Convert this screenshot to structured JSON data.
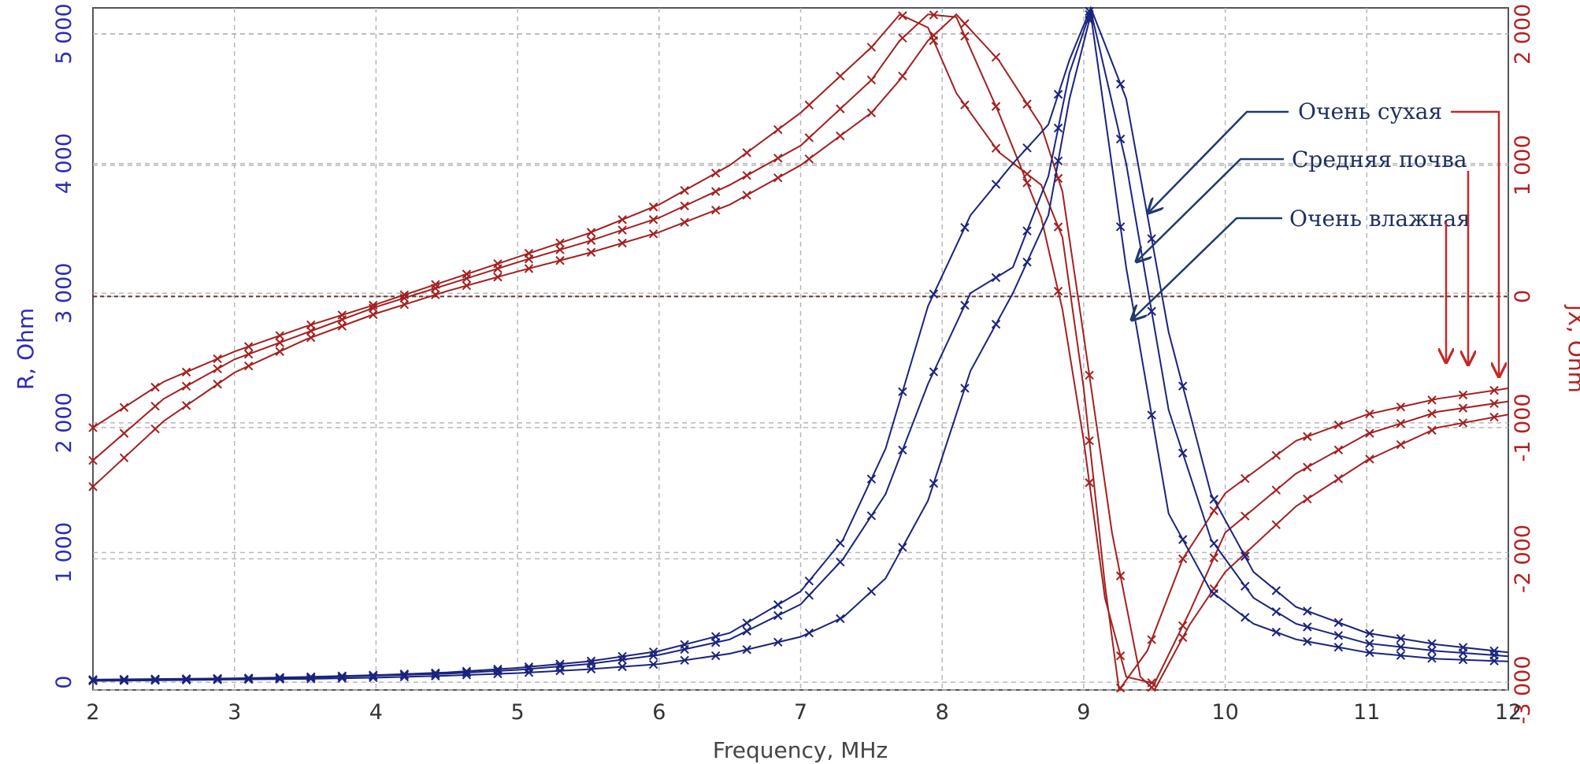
{
  "chart_data": {
    "type": "line",
    "xlabel": "Frequency, MHz",
    "ylabel_left": "R, Ohm",
    "ylabel_right": "jX, Ohm",
    "xlim": [
      2,
      12
    ],
    "ylim_left": [
      -60,
      5200
    ],
    "ylim_right": [
      -3000,
      2200
    ],
    "x_ticks": [
      "2",
      "3",
      "4",
      "5",
      "6",
      "7",
      "8",
      "9",
      "10",
      "11",
      "12"
    ],
    "y_left_ticks": [
      "0",
      "1 000",
      "2 000",
      "3 000",
      "4 000",
      "5 000"
    ],
    "y_right_ticks": [
      "2 000",
      "1 000",
      "0",
      "-1 000",
      "-2 000",
      "-3 000"
    ],
    "grid": true,
    "colors": {
      "R": "#1a237e",
      "X": "#a32020",
      "left_axis": "#2b2bb8",
      "right_axis": "#b52020",
      "annotation": "#1f2f5f"
    },
    "series_R": [
      {
        "x": [
          2.0,
          2.5,
          3.0,
          3.5,
          4.0,
          4.5,
          5.0,
          5.5,
          6.0,
          6.5,
          7.0,
          7.3,
          7.6,
          7.9,
          8.2,
          8.5,
          8.75,
          8.9,
          9.05,
          9.3,
          9.6,
          9.9,
          10.2,
          10.5,
          11.0,
          11.5,
          12.0
        ],
        "y": [
          20,
          25,
          30,
          40,
          55,
          75,
          110,
          160,
          240,
          380,
          700,
          1100,
          1800,
          2900,
          3600,
          4000,
          4300,
          4800,
          5200,
          4500,
          2700,
          1450,
          850,
          580,
          380,
          290,
          230
        ]
      },
      {
        "x": [
          2.0,
          2.5,
          3.0,
          3.5,
          4.0,
          4.5,
          5.0,
          5.5,
          6.0,
          6.5,
          7.0,
          7.3,
          7.6,
          7.9,
          8.2,
          8.5,
          8.75,
          8.9,
          9.05,
          9.3,
          9.6,
          9.9,
          10.2,
          10.5,
          11.0,
          11.5,
          12.0
        ],
        "y": [
          15,
          20,
          25,
          35,
          50,
          65,
          95,
          140,
          210,
          330,
          600,
          950,
          1450,
          2300,
          3000,
          3200,
          3900,
          4700,
          5180,
          4000,
          2100,
          1100,
          650,
          450,
          300,
          240,
          200
        ]
      },
      {
        "x": [
          2.0,
          2.5,
          3.0,
          3.5,
          4.0,
          4.5,
          5.0,
          5.5,
          6.0,
          6.5,
          7.0,
          7.3,
          7.6,
          7.9,
          8.2,
          8.5,
          8.75,
          8.9,
          9.05,
          9.3,
          9.6,
          9.9,
          10.2,
          10.5,
          11.0,
          11.5,
          12.0
        ],
        "y": [
          10,
          15,
          20,
          25,
          35,
          50,
          70,
          100,
          140,
          220,
          350,
          500,
          800,
          1400,
          2400,
          3000,
          3600,
          4500,
          5150,
          3200,
          1300,
          700,
          450,
          330,
          230,
          180,
          160
        ]
      }
    ],
    "series_X": [
      {
        "x": [
          2.0,
          2.5,
          3.0,
          3.5,
          4.0,
          4.5,
          5.0,
          5.5,
          6.0,
          6.5,
          7.0,
          7.5,
          7.7,
          7.9,
          8.1,
          8.4,
          8.7,
          8.85,
          9.0,
          9.15,
          9.25,
          9.45,
          9.7,
          10.0,
          10.5,
          11.0,
          11.5,
          12.0
        ],
        "y": [
          -1000,
          -650,
          -420,
          -230,
          -60,
          120,
          300,
          480,
          700,
          1000,
          1400,
          1900,
          2150,
          2050,
          1550,
          1100,
          850,
          450,
          -700,
          -2200,
          -3000,
          -2700,
          -2000,
          -1500,
          -1100,
          -900,
          -780,
          -700
        ]
      },
      {
        "x": [
          2.0,
          2.5,
          3.0,
          3.5,
          4.0,
          4.5,
          5.0,
          5.5,
          6.0,
          6.5,
          7.0,
          7.5,
          7.7,
          7.9,
          8.1,
          8.4,
          8.7,
          8.85,
          9.0,
          9.15,
          9.3,
          9.5,
          9.75,
          10.0,
          10.5,
          11.0,
          11.5,
          12.0
        ],
        "y": [
          -1250,
          -780,
          -480,
          -280,
          -80,
          90,
          260,
          420,
          600,
          850,
          1150,
          1650,
          1950,
          2150,
          2130,
          1400,
          600,
          -100,
          -1100,
          -2300,
          -2900,
          -2950,
          -2400,
          -1800,
          -1350,
          -1050,
          -880,
          -800
        ]
      },
      {
        "x": [
          2.0,
          2.5,
          3.0,
          3.5,
          4.0,
          4.5,
          5.0,
          5.5,
          6.0,
          6.5,
          7.0,
          7.5,
          7.7,
          7.9,
          8.1,
          8.4,
          8.7,
          8.85,
          9.0,
          9.2,
          9.4,
          9.5,
          9.75,
          10.0,
          10.5,
          11.0,
          11.5,
          12.0
        ],
        "y": [
          -1450,
          -950,
          -580,
          -330,
          -130,
          40,
          190,
          330,
          490,
          700,
          1000,
          1400,
          1650,
          1950,
          2150,
          1800,
          1300,
          800,
          -300,
          -1800,
          -2900,
          -3000,
          -2500,
          -2100,
          -1600,
          -1250,
          -1000,
          -900
        ]
      }
    ],
    "annotations": {
      "very_dry": "Очень сухая",
      "average_soil": "Средняя почва",
      "very_wet": "Очень влажная"
    }
  }
}
